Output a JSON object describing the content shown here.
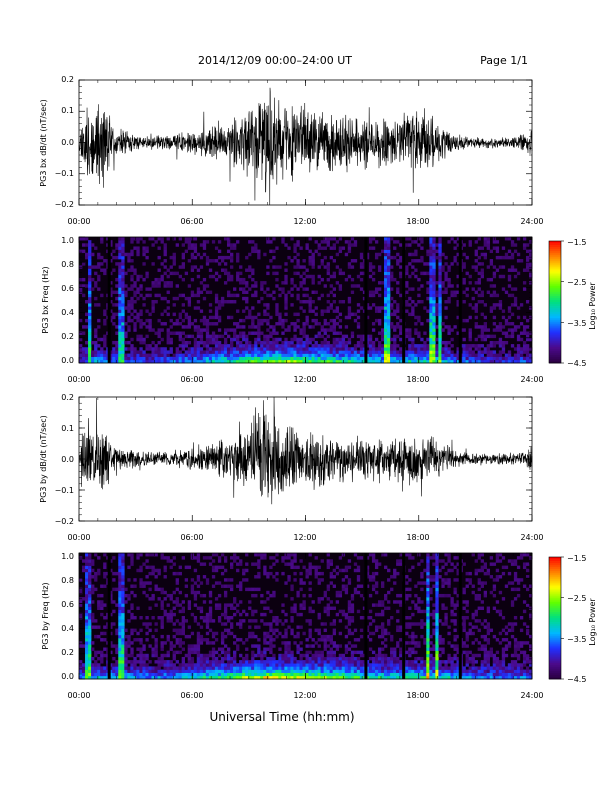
{
  "header": {
    "title": "2014/12/09   00:00–24:00 UT",
    "page": "Page 1/1"
  },
  "x_axis_label": "Universal Time (hh:mm)",
  "colors": {
    "trace": "#000000",
    "spectrogram_background": "#0b0010",
    "spectrogram_gap": "#000000"
  },
  "colorbar_colormap": [
    "#2a0040",
    "#4b0a8c",
    "#2030ff",
    "#00b8ff",
    "#00e080",
    "#60ff00",
    "#ffff00",
    "#ff8000",
    "#ff0000"
  ],
  "chart_data": [
    {
      "type": "line",
      "ylabel": "PG3 bx dB/dt (nT/sec)",
      "xlim": [
        0,
        24
      ],
      "ylim": [
        -0.2,
        0.2
      ],
      "xticks": [
        "00:00",
        "06:00",
        "12:00",
        "18:00",
        "24:00"
      ],
      "yticks": [
        "0.2",
        "0.1",
        "0.0",
        "−0.1",
        "−0.2"
      ],
      "envelope_x_hours": [
        0,
        0.25,
        0.5,
        0.75,
        1.0,
        1.25,
        1.5,
        1.75,
        2.0,
        3,
        4,
        5,
        6,
        7,
        8,
        8.5,
        9,
        9.5,
        10,
        10.5,
        11,
        11.5,
        12,
        12.5,
        13,
        13.5,
        14,
        14.5,
        15,
        16,
        17,
        17.5,
        18,
        18.5,
        19,
        19.5,
        20,
        21,
        22,
        23,
        23.75,
        24
      ],
      "envelope_amplitude": [
        0.03,
        0.12,
        0.18,
        0.12,
        0.14,
        0.18,
        0.12,
        0.07,
        0.05,
        0.03,
        0.025,
        0.03,
        0.04,
        0.06,
        0.08,
        0.1,
        0.13,
        0.18,
        0.2,
        0.16,
        0.15,
        0.14,
        0.13,
        0.12,
        0.11,
        0.1,
        0.1,
        0.09,
        0.09,
        0.09,
        0.1,
        0.12,
        0.13,
        0.12,
        0.08,
        0.05,
        0.03,
        0.02,
        0.02,
        0.02,
        0.04,
        0.05
      ]
    },
    {
      "type": "heatmap",
      "ylabel": "PG3 bx Freq (Hz)",
      "colorbar_label": "Log₁₀ Power",
      "colorbar_ticks": [
        "−1.5",
        "−2.5",
        "−3.5",
        "−4.5"
      ],
      "clim": [
        -4.5,
        -1.5
      ],
      "xlim": [
        0,
        24
      ],
      "ylim": [
        0,
        1.0
      ],
      "xticks": [
        "00:00",
        "06:00",
        "12:00",
        "18:00",
        "24:00"
      ],
      "yticks": [
        "1.0",
        "0.8",
        "0.6",
        "0.4",
        "0.2",
        "0.0"
      ],
      "gap_lines_hours": [
        1.6,
        15.2,
        17.2,
        20.2
      ],
      "bright_columns_hours": [
        0.55,
        2.2,
        16.3,
        18.7,
        19.1
      ],
      "low_freq_power_x_hours": [
        0,
        1,
        2,
        3,
        4,
        5,
        6,
        7,
        8,
        9,
        10,
        11,
        12,
        13,
        14,
        15,
        16,
        17,
        18,
        19,
        20,
        21,
        22,
        23,
        24
      ],
      "low_freq_power_values": [
        -3.8,
        -3.3,
        -3.6,
        -3.7,
        -3.8,
        -3.6,
        -3.4,
        -3.1,
        -2.8,
        -2.5,
        -2.3,
        -2.3,
        -2.5,
        -2.6,
        -2.8,
        -2.9,
        -3.1,
        -3.1,
        -3.0,
        -3.2,
        -3.5,
        -3.7,
        -3.8,
        -3.8,
        -3.7
      ]
    },
    {
      "type": "line",
      "ylabel": "PG3 by dB/dt (nT/sec)",
      "xlim": [
        0,
        24
      ],
      "ylim": [
        -0.2,
        0.2
      ],
      "xticks": [
        "00:00",
        "06:00",
        "12:00",
        "18:00",
        "24:00"
      ],
      "yticks": [
        "0.2",
        "0.1",
        "0.0",
        "−0.1",
        "−0.2"
      ],
      "envelope_x_hours": [
        0,
        0.25,
        0.5,
        0.75,
        1.0,
        1.25,
        1.5,
        1.75,
        2.0,
        3,
        4,
        5,
        6,
        7,
        8,
        8.5,
        9,
        9.5,
        10,
        10.5,
        11,
        11.5,
        12,
        12.5,
        13,
        13.5,
        14,
        14.5,
        15,
        16,
        17,
        17.5,
        18,
        18.5,
        19,
        19.5,
        20,
        21,
        22,
        23,
        23.75,
        24
      ],
      "envelope_amplitude": [
        0.03,
        0.1,
        0.15,
        0.1,
        0.12,
        0.14,
        0.1,
        0.06,
        0.05,
        0.03,
        0.025,
        0.03,
        0.04,
        0.06,
        0.08,
        0.1,
        0.14,
        0.2,
        0.2,
        0.15,
        0.13,
        0.12,
        0.11,
        0.12,
        0.1,
        0.09,
        0.08,
        0.08,
        0.08,
        0.08,
        0.08,
        0.1,
        0.1,
        0.1,
        0.07,
        0.05,
        0.03,
        0.02,
        0.02,
        0.02,
        0.03,
        0.05
      ]
    },
    {
      "type": "heatmap",
      "ylabel": "PG3 by Freq (Hz)",
      "colorbar_label": "Log₁₀ Power",
      "colorbar_ticks": [
        "−1.5",
        "−2.5",
        "−3.5",
        "−4.5"
      ],
      "clim": [
        -4.5,
        -1.5
      ],
      "xlim": [
        0,
        24
      ],
      "ylim": [
        0,
        1.0
      ],
      "xticks": [
        "00:00",
        "06:00",
        "12:00",
        "18:00",
        "24:00"
      ],
      "yticks": [
        "1.0",
        "0.8",
        "0.6",
        "0.4",
        "0.2",
        "0.0"
      ],
      "gap_lines_hours": [
        1.6,
        15.2,
        17.2,
        20.2
      ],
      "bright_columns_hours": [
        0.5,
        2.2,
        18.5,
        19.0
      ],
      "low_freq_power_x_hours": [
        0,
        1,
        2,
        3,
        4,
        5,
        6,
        7,
        8,
        9,
        10,
        11,
        12,
        13,
        14,
        15,
        16,
        17,
        18,
        19,
        20,
        21,
        22,
        23,
        24
      ],
      "low_freq_power_values": [
        -3.5,
        -3.2,
        -3.3,
        -3.4,
        -3.5,
        -3.3,
        -3.1,
        -2.8,
        -2.5,
        -2.2,
        -2.0,
        -2.1,
        -2.2,
        -2.4,
        -2.5,
        -2.7,
        -2.9,
        -2.9,
        -2.8,
        -3.0,
        -3.2,
        -3.4,
        -3.5,
        -3.6,
        -3.4
      ]
    }
  ]
}
